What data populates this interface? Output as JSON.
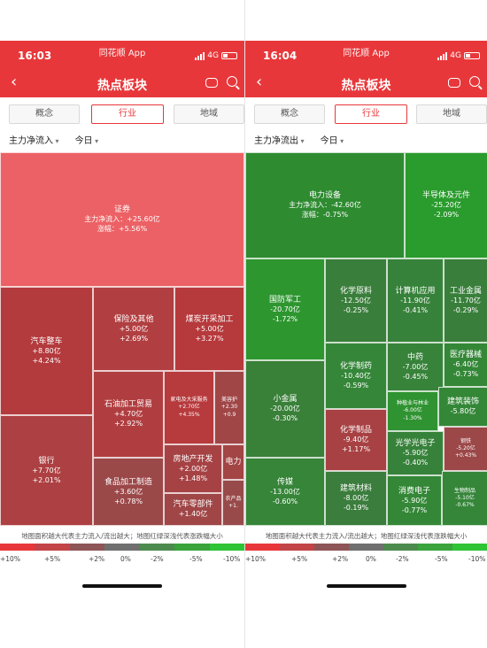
{
  "left": {
    "status": {
      "time": "16:03",
      "app": "同花顺 App",
      "net": "4G"
    },
    "nav": {
      "title": "热点板块"
    },
    "tabs": [
      "概念",
      "行业",
      "地域"
    ],
    "filters": [
      "主力净流入",
      "今日"
    ],
    "cells": [
      {
        "n": "证券",
        "f": "主力净流入：+25.60亿",
        "p": "涨幅：+5.56%",
        "c": "#ec6165"
      },
      {
        "n": "汽车整车",
        "f": "+8.80亿",
        "p": "+4.24%",
        "c": "#b33a3d"
      },
      {
        "n": "保险及其他",
        "f": "+5.00亿",
        "p": "+2.69%",
        "c": "#b13f41"
      },
      {
        "n": "煤炭开采加工",
        "f": "+5.00亿",
        "p": "+3.27%",
        "c": "#b6393c"
      },
      {
        "n": "石油加工贸易",
        "f": "+4.70亿",
        "p": "+2.92%",
        "c": "#b03e40"
      },
      {
        "n": "家电及大采服务",
        "f": "+2.70亿",
        "p": "+4.35%",
        "c": "#b73a3d"
      },
      {
        "n": "美容护",
        "f": "+2.30",
        "p": "+0.9",
        "c": "#a04647"
      },
      {
        "n": "银行",
        "f": "+7.70亿",
        "p": "+2.01%",
        "c": "#ad4042"
      },
      {
        "n": "房地产开发",
        "f": "+2.00亿",
        "p": "+1.48%",
        "c": "#a64244"
      },
      {
        "n": "电力",
        "f": "",
        "p": "",
        "c": "#a34445"
      },
      {
        "n": "食品加工制造",
        "f": "+3.60亿",
        "p": "+0.78%",
        "c": "#9b4849"
      },
      {
        "n": "汽车零部件",
        "f": "+1.40亿",
        "p": "",
        "c": "#a04647"
      },
      {
        "n": "农产品",
        "f": "+1.",
        "p": "",
        "c": "#984a4b"
      }
    ],
    "note": "地图面积越大代表主力流入/流出越大；地图红绿深浅代表涨跌幅大小",
    "legend": [
      "+10%",
      "+5%",
      "+2%",
      "0%",
      "-2%",
      "-5%",
      "-10%"
    ]
  },
  "right": {
    "status": {
      "time": "16:04",
      "app": "同花顺 App",
      "net": "4G"
    },
    "nav": {
      "title": "热点板块"
    },
    "tabs": [
      "概念",
      "行业",
      "地域"
    ],
    "filters": [
      "主力净流出",
      "今日"
    ],
    "cells": [
      {
        "n": "电力设备",
        "f": "主力净流入：-42.60亿",
        "p": "涨幅：-0.75%",
        "c": "#2e8b30"
      },
      {
        "n": "半导体及元件",
        "f": "-25.20亿",
        "p": "-2.09%",
        "c": "#2a9b2d"
      },
      {
        "n": "国防军工",
        "f": "-20.70亿",
        "p": "-1.72%",
        "c": "#2d962f"
      },
      {
        "n": "化学原料",
        "f": "-12.50亿",
        "p": "-0.25%",
        "c": "#3a7e3b"
      },
      {
        "n": "计算机应用",
        "f": "-11.90亿",
        "p": "-0.41%",
        "c": "#37823a"
      },
      {
        "n": "工业金属",
        "f": "-11.70亿",
        "p": "-0.29%",
        "c": "#397f3b"
      },
      {
        "n": "化学制药",
        "f": "-10.40亿",
        "p": "-0.59%",
        "c": "#358639"
      },
      {
        "n": "中药",
        "f": "-7.00亿",
        "p": "-0.45%",
        "c": "#37833a"
      },
      {
        "n": "医疗器械",
        "f": "-6.40亿",
        "p": "-0.73%",
        "c": "#348737"
      },
      {
        "n": "小金属",
        "f": "-20.00亿",
        "p": "-0.30%",
        "c": "#398039"
      },
      {
        "n": "种植业与林业",
        "f": "-6.00亿",
        "p": "-1.30%",
        "c": "#2f9331"
      },
      {
        "n": "建筑装饰",
        "f": "-5.80亿",
        "p": "",
        "c": "#348737"
      },
      {
        "n": "化学制品",
        "f": "-9.40亿",
        "p": "+1.17%",
        "c": "#a84143"
      },
      {
        "n": "光学光电子",
        "f": "-5.90亿",
        "p": "-0.40%",
        "c": "#37823a"
      },
      {
        "n": "钢铁",
        "f": "-5.20亿",
        "p": "+0.43%",
        "c": "#9c4748"
      },
      {
        "n": "传媒",
        "f": "-13.00亿",
        "p": "-0.60%",
        "c": "#368539"
      },
      {
        "n": "建筑材料",
        "f": "-8.00亿",
        "p": "-0.19%",
        "c": "#3b7d3c"
      },
      {
        "n": "消费电子",
        "f": "-5.90亿",
        "p": "-0.77%",
        "c": "#348737"
      },
      {
        "n": "生物制品",
        "f": "-5.10亿",
        "p": "-0.67%",
        "c": "#358639"
      }
    ],
    "note": "地图面积越大代表主力流入/流出越大；地图红绿深浅代表涨跌幅大小",
    "legend": [
      "+10%",
      "+5%",
      "+2%",
      "0%",
      "-2%",
      "-5%",
      "-10%"
    ]
  },
  "colors": {
    "brand_red": "#e8373a",
    "legend": [
      "#e8373a",
      "#c24447",
      "#8e5557",
      "#6f6f6f",
      "#4c8a4e",
      "#3aa33c",
      "#2fc336"
    ]
  }
}
